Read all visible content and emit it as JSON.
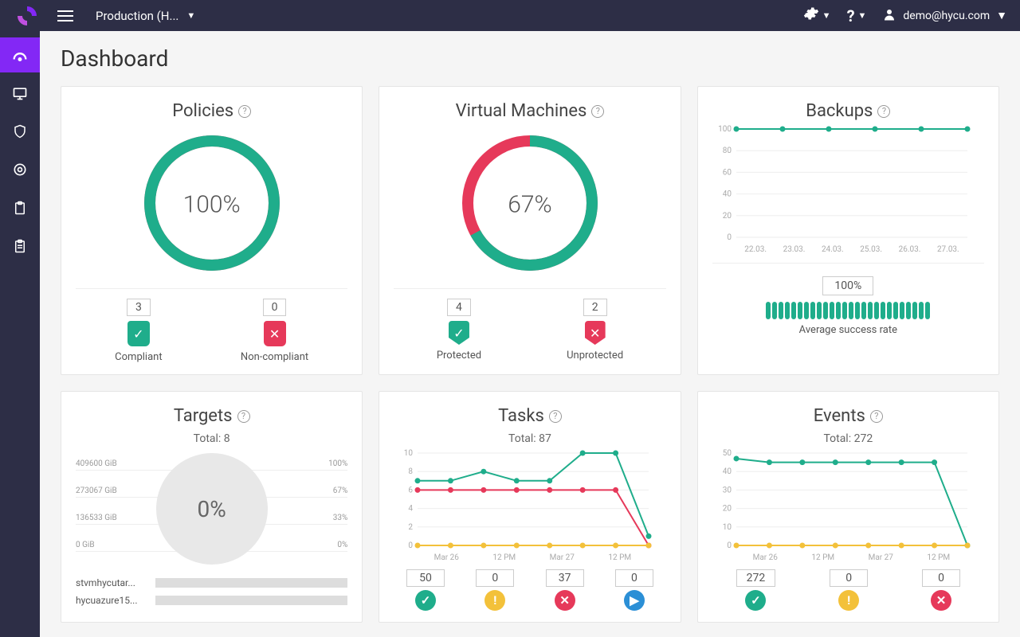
{
  "palette": {
    "topbar_bg": "#2d2e46",
    "accent": "#8328f5",
    "green": "#1fad8b",
    "red": "#e6395a",
    "yellow": "#f3c13a",
    "blue": "#2b8fd6"
  },
  "topbar": {
    "env_dropdown": "Production (H...",
    "user_email": "demo@hycu.com"
  },
  "page_title": "Dashboard",
  "policies": {
    "title": "Policies",
    "donut": {
      "percent": 100,
      "size": 170,
      "stroke": 14,
      "primary": "#1fad8b",
      "secondary": "#e6395a"
    },
    "percent_label": "100%",
    "compliant": {
      "count": "3",
      "label": "Compliant",
      "badge_color": "#1fad8b",
      "glyph": "✓"
    },
    "noncompliant": {
      "count": "0",
      "label": "Non-compliant",
      "badge_color": "#e6395a",
      "glyph": "✕"
    }
  },
  "vms": {
    "title": "Virtual Machines",
    "donut": {
      "percent": 67,
      "size": 170,
      "stroke": 14,
      "primary": "#1fad8b",
      "secondary": "#e6395a"
    },
    "percent_label": "67%",
    "protected": {
      "count": "4",
      "label": "Protected",
      "badge_color": "#1fad8b",
      "glyph": "✓"
    },
    "unprotected": {
      "count": "2",
      "label": "Unprotected",
      "badge_color": "#e6395a",
      "glyph": "✕"
    }
  },
  "backups": {
    "title": "Backups",
    "chart": {
      "ylim": [
        0,
        100
      ],
      "yticks": [
        0,
        20,
        40,
        60,
        80,
        100
      ],
      "xlabels": [
        "22.03.",
        "23.03.",
        "24.03.",
        "25.03.",
        "26.03.",
        "27.03."
      ],
      "series": [
        {
          "color": "#1fad8b",
          "values": [
            100,
            100,
            100,
            100,
            100,
            100
          ]
        }
      ]
    },
    "rate_label": "100%",
    "bars": {
      "count": 26,
      "color": "#1fad8b"
    },
    "subtitle": "Average success rate"
  },
  "targets": {
    "title": "Targets",
    "total_label": "Total: 8",
    "gauge_pct": "0%",
    "ticks": [
      {
        "left": "409600 GiB",
        "right": "100%"
      },
      {
        "left": "273067 GiB",
        "right": "67%"
      },
      {
        "left": "136533 GiB",
        "right": "33%"
      },
      {
        "left": "0 GiB",
        "right": "0%"
      }
    ],
    "rows": [
      {
        "name": "stvmhycutar..."
      },
      {
        "name": "hycuazure15..."
      }
    ]
  },
  "tasks": {
    "title": "Tasks",
    "total_label": "Total: 87",
    "chart": {
      "ylim": [
        0,
        10
      ],
      "yticks": [
        0,
        2,
        4,
        6,
        8,
        10
      ],
      "xlabels": [
        "Mar 26",
        "12 PM",
        "Mar 27",
        "12 PM"
      ],
      "series": [
        {
          "color": "#1fad8b",
          "values": [
            7,
            7,
            8,
            7,
            7,
            10,
            10,
            1
          ]
        },
        {
          "color": "#e6395a",
          "values": [
            6,
            6,
            6,
            6,
            6,
            6,
            6,
            0
          ]
        },
        {
          "color": "#f3c13a",
          "values": [
            0,
            0,
            0,
            0,
            0,
            0,
            0,
            0
          ]
        }
      ]
    },
    "counts": [
      {
        "value": "50",
        "color": "#1fad8b",
        "glyph": "✓"
      },
      {
        "value": "0",
        "color": "#f3c13a",
        "glyph": "!"
      },
      {
        "value": "37",
        "color": "#e6395a",
        "glyph": "✕"
      },
      {
        "value": "0",
        "color": "#2b8fd6",
        "glyph": "▶"
      }
    ]
  },
  "events": {
    "title": "Events",
    "total_label": "Total: 272",
    "chart": {
      "ylim": [
        0,
        50
      ],
      "yticks": [
        0,
        10,
        20,
        30,
        40,
        50
      ],
      "xlabels": [
        "Mar 26",
        "12 PM",
        "Mar 27",
        "12 PM"
      ],
      "series": [
        {
          "color": "#1fad8b",
          "values": [
            47,
            45,
            45,
            45,
            45,
            45,
            45,
            0
          ]
        },
        {
          "color": "#f3c13a",
          "values": [
            0,
            0,
            0,
            0,
            0,
            0,
            0,
            0
          ]
        }
      ]
    },
    "counts": [
      {
        "value": "272",
        "color": "#1fad8b",
        "glyph": "✓"
      },
      {
        "value": "0",
        "color": "#f3c13a",
        "glyph": "!"
      },
      {
        "value": "0",
        "color": "#e6395a",
        "glyph": "✕"
      }
    ]
  }
}
